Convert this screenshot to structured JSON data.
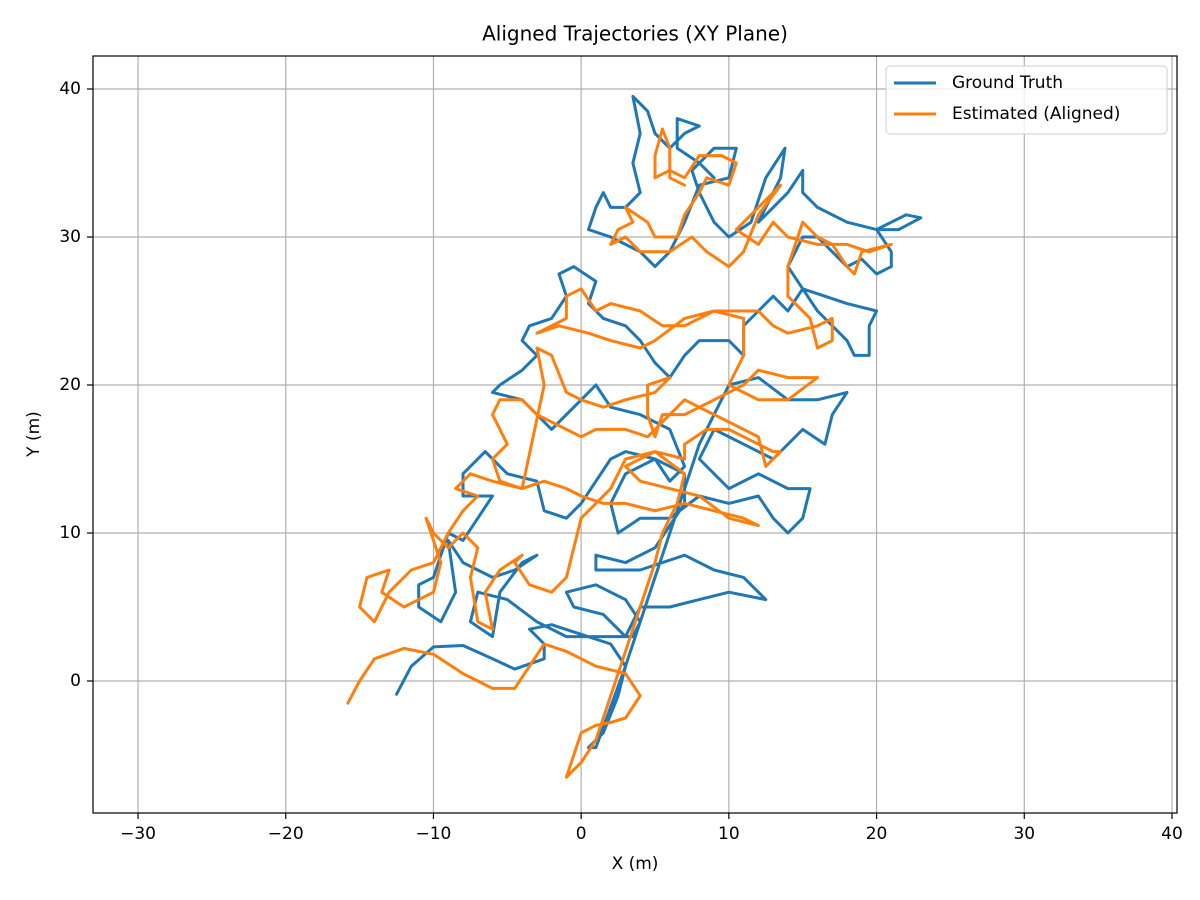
{
  "chart_data": {
    "type": "line",
    "title": "Aligned Trajectories (XY Plane)",
    "xlabel": "X (m)",
    "ylabel": "Y (m)",
    "xlim": [
      -33.05,
      40.34
    ],
    "ylim": [
      -8.92,
      42.23
    ],
    "xticks": [
      {
        "value": -30,
        "label": "−30"
      },
      {
        "value": -20,
        "label": "−20"
      },
      {
        "value": -10,
        "label": "−10"
      },
      0,
      10,
      20,
      30,
      40
    ],
    "yticks": [
      0,
      10,
      20,
      30,
      40
    ],
    "grid": true,
    "legend": "upper right",
    "series": [
      {
        "name": "Ground Truth",
        "color": "#1f77b4",
        "x": [
          -12.5,
          -11.5,
          -10,
          -8,
          -6,
          -4.5,
          -2.5,
          -2.5,
          -3.5,
          -2,
          2,
          3,
          2.5,
          1.5,
          0.5,
          1,
          3,
          5,
          6,
          7,
          8,
          9,
          10,
          12,
          14,
          16,
          18,
          17,
          16.5,
          15,
          13,
          11,
          9,
          8,
          10,
          12,
          14,
          15.5,
          15,
          14,
          13,
          12,
          10,
          8,
          6,
          4,
          2.5,
          2,
          3,
          5,
          7,
          7,
          5,
          3,
          1,
          1,
          4,
          7,
          9,
          11,
          12,
          12.5,
          10,
          8,
          6,
          4,
          3,
          1.5,
          -0.5,
          -1,
          1,
          3,
          4,
          3.5,
          1,
          -1,
          -3,
          -5,
          -7,
          -7.5,
          -6,
          -5.5,
          -4,
          -3,
          -4.5,
          -6,
          -8,
          -9,
          -8.5,
          -9.5,
          -11,
          -11,
          -10,
          -9,
          -8,
          -7,
          -6,
          -8,
          -8,
          -6.5,
          -5,
          -3,
          -2.5,
          -1,
          0,
          1,
          2,
          3,
          5,
          6,
          7,
          6,
          4,
          2,
          1,
          0,
          -1,
          -2,
          -3,
          -4,
          -6,
          -5.5,
          -4,
          -3,
          -4,
          -3.5,
          -2,
          -1,
          -1.5,
          -0.5,
          1,
          0.5,
          1.5,
          3,
          4,
          5,
          6,
          7,
          8,
          10,
          11,
          11,
          12,
          13,
          14,
          15,
          16,
          17,
          18,
          18.5,
          19.5,
          19.5,
          20,
          18,
          16.5,
          15,
          14,
          15,
          16,
          17,
          18,
          19,
          20,
          21,
          21,
          20,
          21,
          22,
          23,
          21.5,
          20,
          18,
          16,
          15,
          15,
          14,
          13,
          12,
          13.5,
          13.8,
          12.5,
          11.5,
          10,
          9,
          8,
          7.5,
          9,
          10.5,
          10,
          8,
          7,
          6,
          5,
          4,
          3,
          2,
          0.5,
          1,
          1.5,
          2,
          3,
          4,
          3.5,
          4,
          3.5,
          4.5,
          5,
          6,
          7,
          8,
          6.5,
          6.5,
          8,
          9
        ],
        "values": [
          -0.9,
          1,
          2.3,
          2.4,
          1.5,
          0.8,
          1.5,
          2.5,
          3.5,
          3.8,
          2.5,
          1,
          -1,
          -3.5,
          -4.5,
          -4.5,
          1,
          7,
          10,
          13,
          16,
          18,
          20,
          20.5,
          19,
          19,
          19.5,
          18,
          16,
          17,
          15,
          16,
          17,
          15,
          13,
          14,
          13,
          13,
          11,
          10,
          11,
          12.5,
          12,
          12.5,
          11,
          11,
          10,
          12,
          14,
          15,
          14,
          12,
          9,
          8,
          8.5,
          7.5,
          7.5,
          8.5,
          7.5,
          7,
          6,
          5.5,
          6,
          5.5,
          5,
          5,
          3,
          4.5,
          5,
          6,
          6.5,
          5.5,
          4,
          3,
          3,
          3,
          4,
          5.5,
          6,
          4,
          3,
          6,
          8,
          8.5,
          7.5,
          7,
          8,
          9.5,
          6,
          4,
          5,
          6.5,
          7,
          10,
          9.5,
          11,
          12.5,
          12.5,
          14,
          15.5,
          14,
          13.5,
          11.5,
          11,
          12,
          13.5,
          15,
          15.5,
          15,
          13.5,
          14.5,
          17,
          18,
          18.5,
          20,
          19,
          18,
          17,
          18,
          19,
          19.5,
          20,
          21,
          22,
          23,
          24,
          24.5,
          26,
          27.5,
          28,
          27,
          25.5,
          24.5,
          24,
          23,
          21.5,
          20.5,
          22,
          23,
          23,
          22,
          24,
          25,
          26,
          25,
          26.5,
          25,
          24,
          23,
          22,
          22,
          24,
          25,
          25.5,
          26,
          26.5,
          28,
          30,
          30,
          29,
          28,
          28.5,
          27.5,
          28,
          29,
          30.5,
          31,
          31.5,
          31.3,
          30.5,
          30.5,
          31,
          32,
          33,
          34.5,
          33,
          32,
          31,
          34,
          36,
          34,
          31,
          30,
          31,
          33,
          34.5,
          36,
          36,
          34,
          33.5,
          31,
          29,
          28,
          29,
          29.5,
          30,
          30.5,
          32,
          33,
          32,
          32,
          33,
          35,
          37,
          39.5,
          38.5,
          37,
          36,
          37,
          37.5,
          38,
          36,
          35,
          34
        ]
      },
      {
        "name": "Estimated (Aligned)",
        "color": "#ff7f0e",
        "x": [
          -15.8,
          -15,
          -14,
          -12,
          -10,
          -8,
          -6,
          -4.5,
          -3.5,
          -2.5,
          -1,
          1,
          3,
          4,
          3,
          2,
          1,
          0,
          -0.5,
          -1,
          0,
          1,
          2,
          3,
          4,
          5,
          5.5,
          6.5,
          7,
          5,
          3,
          2,
          1,
          0,
          -0.5,
          -1,
          -2,
          -3.5,
          -4.5,
          -4,
          -5.5,
          -6.5,
          -6,
          -7,
          -7.5,
          -7,
          -8,
          -9,
          -10,
          -10.5,
          -9.5,
          -10,
          -12,
          -13.5,
          -13,
          -14.5,
          -15,
          -14,
          -13,
          -11.5,
          -10,
          -9,
          -8,
          -7,
          -8.5,
          -7.5,
          -6,
          -4,
          -2.5,
          -1,
          0,
          1.5,
          3,
          5,
          7,
          9,
          11,
          12,
          10,
          8,
          6,
          4,
          3,
          5,
          7,
          7,
          8.5,
          10,
          11,
          12,
          13,
          13.5,
          12.5,
          12,
          10,
          9,
          8,
          7,
          6,
          5,
          4.5,
          3,
          1,
          0,
          -1,
          -2,
          -3,
          -4,
          -5.5,
          -6,
          -5,
          -6,
          -5.5,
          -4,
          -2.5,
          -3,
          -2,
          -1,
          0,
          1.5,
          3,
          5,
          6,
          4.5,
          4.5,
          5,
          5.5,
          7,
          9,
          11,
          12,
          14,
          16,
          14,
          12,
          10,
          11,
          11,
          9,
          7,
          5.5,
          4,
          2,
          1,
          0,
          -1,
          -1,
          -3,
          -1.5,
          0.5,
          2,
          4,
          5,
          7,
          9,
          11,
          12,
          13,
          14,
          16,
          17,
          17,
          16,
          15.5,
          14,
          14,
          15,
          16,
          17,
          18,
          18.5,
          19,
          21,
          19.5,
          18,
          16,
          14,
          13,
          12,
          10.5,
          12,
          13.5,
          12,
          11,
          10,
          8.5,
          7.5,
          6,
          4,
          3,
          2,
          2.5,
          3.5,
          3,
          4.5,
          5,
          6.5,
          7,
          8,
          8.5,
          10,
          10.5,
          9.5,
          8,
          7,
          6,
          5,
          5,
          5.5,
          6,
          6,
          7
        ],
        "values": [
          -1.5,
          0,
          1.5,
          2.2,
          1.8,
          0.5,
          -0.5,
          -0.5,
          1,
          2.5,
          2,
          1,
          0.5,
          -1,
          -2.5,
          -2.8,
          -3,
          -3.5,
          -5,
          -6.5,
          -5.5,
          -4,
          -1,
          2,
          5,
          8,
          10,
          12,
          14,
          15.5,
          15,
          13,
          12,
          11,
          9,
          7,
          6,
          6.5,
          8,
          8.5,
          7.5,
          6,
          3.5,
          4,
          7,
          9,
          10,
          9,
          10,
          11,
          8,
          6,
          5,
          6,
          7.5,
          7,
          5,
          4,
          6,
          7.5,
          8,
          10,
          11.5,
          12.5,
          13,
          14,
          13.5,
          13,
          13.5,
          13,
          12.5,
          12,
          12,
          11.5,
          12,
          11.5,
          11,
          10.5,
          11,
          12.5,
          13,
          13.5,
          14.5,
          15.5,
          15,
          16,
          17,
          17,
          16.5,
          16,
          15.5,
          15.5,
          14.5,
          16.5,
          17.5,
          18,
          18.5,
          19,
          18,
          17,
          16.5,
          17,
          17,
          16.5,
          17,
          17.5,
          18,
          19,
          19,
          18,
          16,
          15,
          13.5,
          13,
          20,
          22.5,
          22,
          19.5,
          19,
          18.5,
          19,
          19.5,
          20.5,
          20,
          18,
          16.5,
          18,
          18,
          19,
          20,
          21,
          20.5,
          20.5,
          19,
          19,
          20,
          22,
          24.5,
          25,
          24,
          24,
          25,
          25.5,
          25,
          26.5,
          26,
          24.5,
          23.5,
          24,
          23.5,
          23,
          22.5,
          23,
          24.5,
          25,
          25,
          25,
          24,
          23.5,
          24,
          24.5,
          23,
          22.5,
          24.5,
          26,
          28,
          31,
          30,
          29.5,
          28,
          27.5,
          29,
          29.5,
          29,
          29.5,
          29.5,
          30,
          31,
          29.5,
          30.5,
          32,
          33.5,
          31.5,
          29,
          28,
          29,
          30,
          29,
          29,
          30,
          29.5,
          30.5,
          31,
          32,
          31,
          30,
          30,
          31.5,
          33,
          34,
          33.5,
          35,
          35.5,
          35.5,
          34,
          34.5,
          34,
          35.5,
          37.3,
          36,
          34,
          33.5
        ]
      }
    ]
  }
}
